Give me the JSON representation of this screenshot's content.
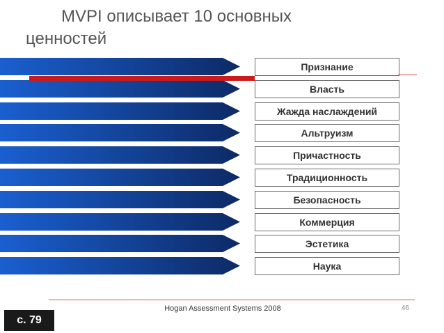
{
  "title": {
    "line1": "MVPI описывает 10 основных",
    "line2": "ценностей"
  },
  "values": [
    {
      "label": "Признание"
    },
    {
      "label": "Власть"
    },
    {
      "label": "Жажда наслаждений"
    },
    {
      "label": "Альтруизм"
    },
    {
      "label": "Причастность"
    },
    {
      "label": "Традиционность"
    },
    {
      "label": "Безопасность"
    },
    {
      "label": "Коммерция"
    },
    {
      "label": "Эстетика"
    },
    {
      "label": "Наука"
    }
  ],
  "footer": {
    "text": "Hogan Assessment Systems 2008",
    "page_number": "46"
  },
  "page_ref": "с. 79",
  "colors": {
    "arrow_start": "#1a5fd0",
    "arrow_end": "#0d2a66",
    "accent_red": "#cc1a1a"
  }
}
